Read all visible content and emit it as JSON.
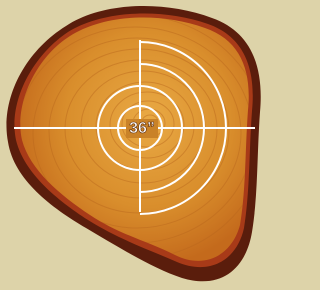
{
  "label": "36”"
}
